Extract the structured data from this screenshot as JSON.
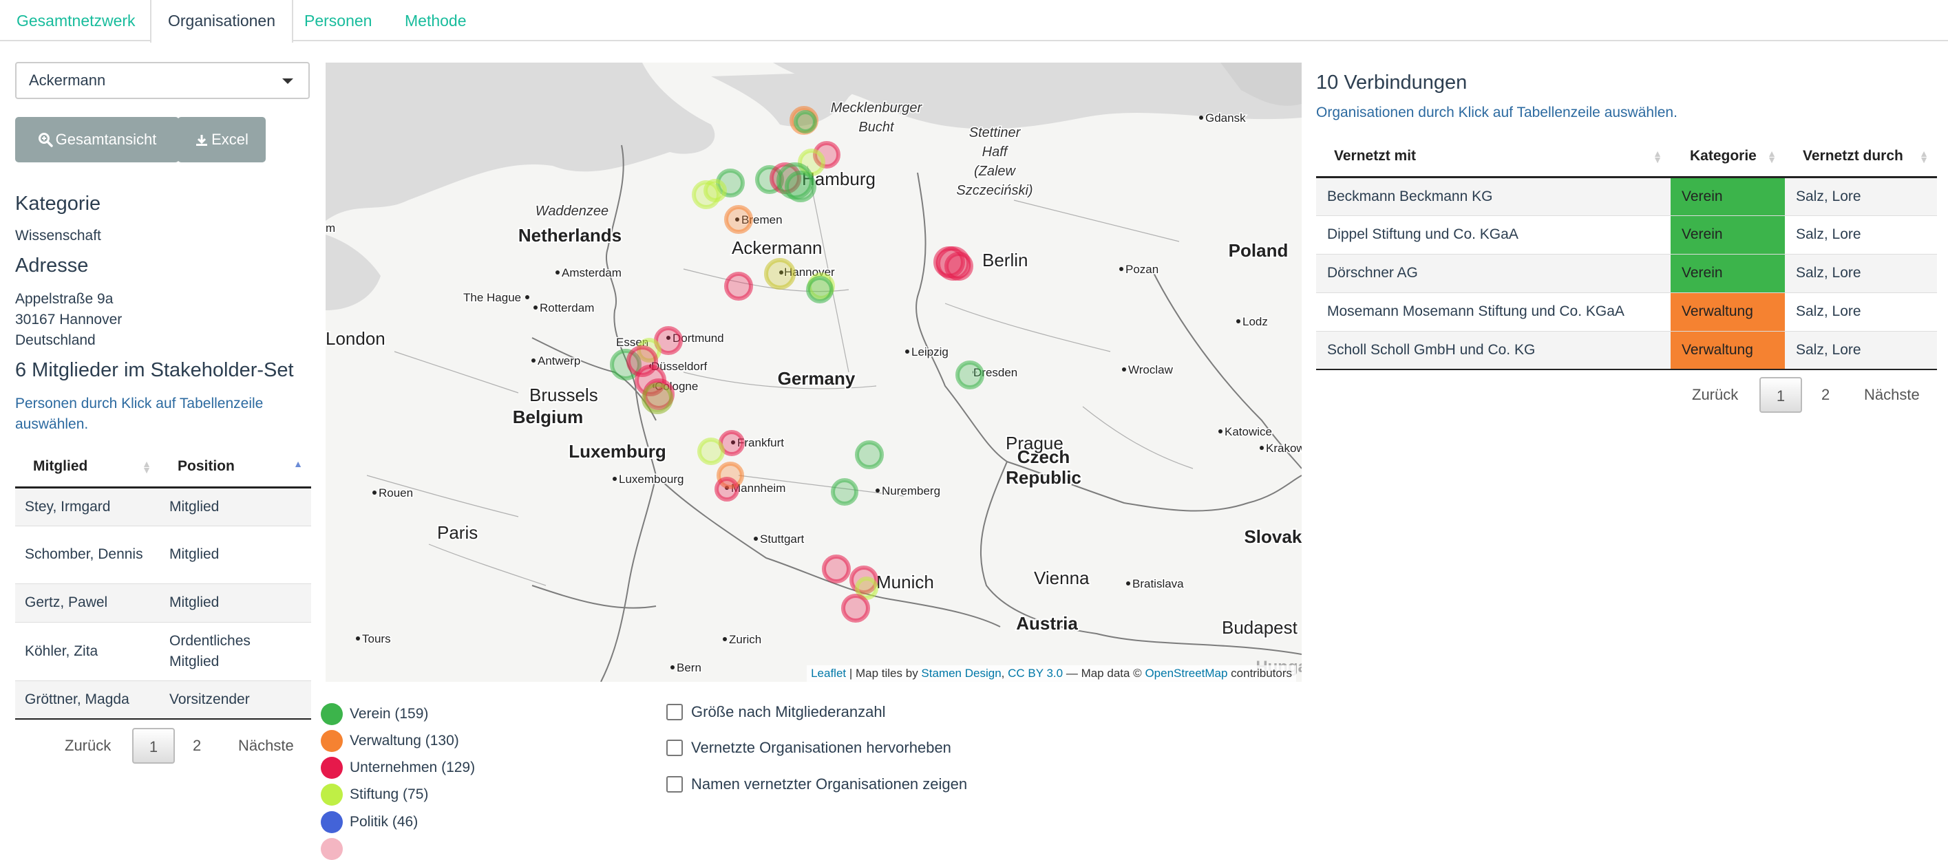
{
  "tabs": [
    "Gesamtnetzwerk",
    "Organisationen",
    "Personen",
    "Methode"
  ],
  "active_tab": "Organisationen",
  "selector": {
    "value": "Ackermann"
  },
  "buttons": {
    "overview": "Gesamtansicht",
    "excel": "Excel"
  },
  "details": {
    "kategorie_heading": "Kategorie",
    "kategorie_value": "Wissenschaft",
    "adresse_heading": "Adresse",
    "address_line1": "Appelstraße 9a",
    "address_line2": "30167 Hannover",
    "address_line3": "Deutschland",
    "members_heading": "6 Mitglieder im Stakeholder-Set",
    "members_hint": "Personen durch Klick auf Tabellenzeile auswählen."
  },
  "members_table": {
    "headers": [
      "Mitglied",
      "Position"
    ],
    "rows": [
      [
        "Stey, Irmgard",
        "Mitglied"
      ],
      [
        "Schomber, Dennis",
        "Mitglied"
      ],
      [
        "Gertz, Pawel",
        "Mitglied"
      ],
      [
        "Köhler, Zita",
        "Ordentliches Mitglied"
      ],
      [
        "Gröttner, Magda",
        "Vorsitzender"
      ]
    ],
    "pager": {
      "prev": "Zurück",
      "page1": "1",
      "page2": "2",
      "next": "Nächste"
    }
  },
  "map": {
    "labels": {
      "mecklenburger": "Mecklenburger",
      "bucht": "Bucht",
      "stettiner": "Stettiner",
      "haff": "Haff",
      "zalew": "(Zalew",
      "szczecinski": "Szczeciński)",
      "waddenzee": "Waddenzee",
      "netherlands": "Netherlands",
      "ackermann": "Ackermann",
      "germany": "Germany",
      "poland": "Poland",
      "belgium": "Belgium",
      "brussels": "Brussels",
      "luxemburg": "Luxemburg",
      "london": "London",
      "paris": "Paris",
      "prague": "Prague",
      "czech": "Czech",
      "republic": "Republic",
      "vienna": "Vienna",
      "austria": "Austria",
      "slovaki": "Slovaki",
      "budapest": "Budapest",
      "hungary": "Hungary",
      "hamburg": "Hamburg",
      "berlin": "Berlin",
      "munich": "Munich",
      "gdansk": "Gdansk",
      "bremen": "Bremen",
      "hannover": "Hannover",
      "amsterdam": "Amsterdam",
      "the_hague": "The Hague",
      "rotterdam": "Rotterdam",
      "pozan": "Pozan",
      "lodz": "Lodz",
      "essen": "Essen",
      "dortmund": "Dortmund",
      "dusseldorf": "Düsseldorf",
      "cologne": "Cologne",
      "antwerp": "Antwerp",
      "leipzig": "Leipzig",
      "dresden": "Dresden",
      "wroclaw": "Wroclaw",
      "katowice": "Katowice",
      "krakow": "Krakow",
      "frankfurt": "Frankfurt",
      "luxembourg_city": "Luxembourg",
      "mannheim": "Mannheim",
      "nuremberg": "Nuremberg",
      "rouen": "Rouen",
      "stuttgart": "Stuttgart",
      "bratislava": "Bratislava",
      "zurich": "Zurich",
      "tours": "Tours",
      "bern": "Bern",
      "m_edge": "m"
    },
    "attribution": {
      "leaflet": "Leaflet",
      "tiles": " | Map tiles by ",
      "stamen": "Stamen Design",
      "comma": ", ",
      "cc": "CC BY 3.0",
      "data": " — Map data © ",
      "osm": "OpenStreetMap",
      "contrib": " contributors"
    }
  },
  "legend": [
    {
      "label": "Verein (159)",
      "color": "#3cb44b"
    },
    {
      "label": "Verwaltung (130)",
      "color": "#f58231"
    },
    {
      "label": "Unternehmen (129)",
      "color": "#e6194b"
    },
    {
      "label": "Stiftung (75)",
      "color": "#bfef45"
    },
    {
      "label": "Politik (46)",
      "color": "#4363d8"
    }
  ],
  "options": [
    "Größe nach Mitgliederanzahl",
    "Vernetzte Organisationen hervorheben",
    "Namen vernetzter Organisationen zeigen"
  ],
  "connections": {
    "heading": "10 Verbindungen",
    "hint": "Organisationen durch Klick auf Tabellenzeile auswählen.",
    "headers": [
      "Vernetzt mit",
      "Kategorie",
      "Vernetzt durch"
    ],
    "rows": [
      {
        "name": "Beckmann Beckmann KG",
        "kategorie": "Verein",
        "durch": "Salz, Lore",
        "color": "#3cb44b"
      },
      {
        "name": "Dippel Stiftung und Co. KGaA",
        "kategorie": "Verein",
        "durch": "Salz, Lore",
        "color": "#3cb44b"
      },
      {
        "name": "Dörschner AG",
        "kategorie": "Verein",
        "durch": "Salz, Lore",
        "color": "#3cb44b"
      },
      {
        "name": "Mosemann Mosemann Stiftung und Co. KGaA",
        "kategorie": "Verwaltung",
        "durch": "Salz, Lore",
        "color": "#f58231"
      },
      {
        "name": "Scholl Scholl GmbH und Co. KG",
        "kategorie": "Verwaltung",
        "durch": "Salz, Lore",
        "color": "#f58231"
      }
    ],
    "pager": {
      "prev": "Zurück",
      "page1": "1",
      "page2": "2",
      "next": "Nächste"
    }
  }
}
